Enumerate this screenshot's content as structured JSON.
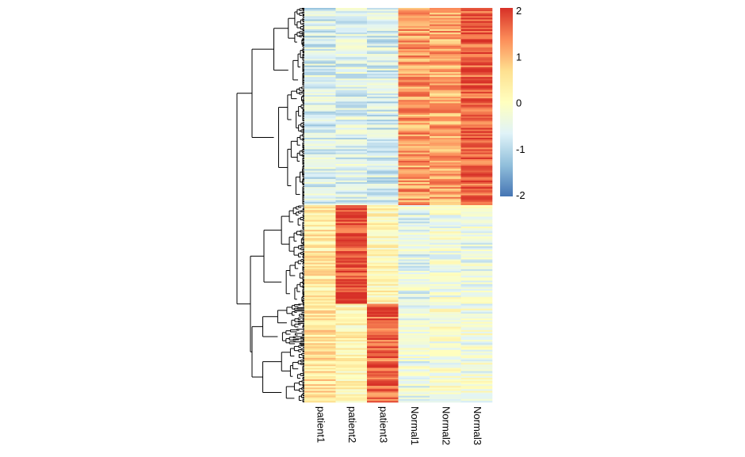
{
  "chart_data": {
    "type": "heatmap",
    "columns": [
      "patient1",
      "patient2",
      "patient3",
      "Normal1",
      "Normal2",
      "Normal3"
    ],
    "color_scale": {
      "min": -2,
      "max": 2,
      "ticks": [
        "2",
        "1",
        "0",
        "-1",
        "-2"
      ],
      "colors": [
        "#4575b4",
        "#91bfdb",
        "#e0f3f8",
        "#ffffbf",
        "#fee090",
        "#fc8d59",
        "#d73027"
      ]
    },
    "row_dendrogram": true,
    "row_labels_shown": false,
    "row_blocks": [
      {
        "name": "block1",
        "row_fraction": 0.5,
        "means": [
          -0.7,
          -0.6,
          -0.7,
          1.2,
          1.1,
          1.7
        ]
      },
      {
        "name": "block2",
        "row_fraction": 0.25,
        "means": [
          0.4,
          1.8,
          0.2,
          -0.5,
          -0.3,
          -0.4
        ]
      },
      {
        "name": "block3",
        "row_fraction": 0.25,
        "means": [
          0.5,
          0.2,
          1.6,
          -0.4,
          -0.2,
          -0.3
        ]
      }
    ]
  }
}
